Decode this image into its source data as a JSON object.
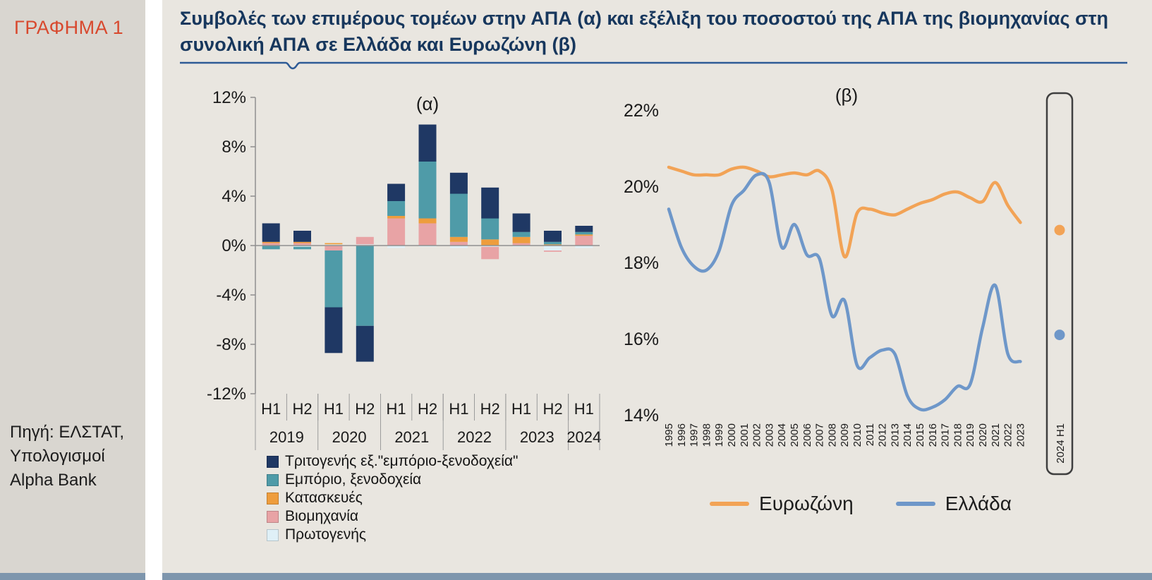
{
  "sidebar": {
    "label": "ΓΡΑΦΗΜΑ 1",
    "source": "Πηγή: ΕΛΣΤΑΤ,\nΥπολογισμοί\nAlpha Bank"
  },
  "header": {
    "title": "Συμβολές των επιμέρους τομέων στην ΑΠΑ (α) και εξέλιξη του ποσοστού της ΑΠΑ της βιομηχανίας στη συνολική ΑΠΑ σε Ελλάδα και Ευρωζώνη  (β)"
  },
  "colors": {
    "accent_red": "#d8492e",
    "title_blue": "#17375d",
    "rule_blue": "#2e5b96",
    "panel_bg": "#e9e6e0",
    "sidebar_bg": "#d9d6d0",
    "bottom_strip": "#7e96ad"
  },
  "chart_data": [
    {
      "type": "bar",
      "stacked": true,
      "title": "(α)",
      "ylim": [
        -12,
        12
      ],
      "yticks": [
        12,
        8,
        4,
        0,
        -4,
        -8,
        -12
      ],
      "ytick_suffix": "%",
      "categories": [
        "H1",
        "H2",
        "H1",
        "H2",
        "H1",
        "H2",
        "H1",
        "H2",
        "H1",
        "H2",
        "H1"
      ],
      "year_groups": [
        {
          "label": "2019",
          "span": 2
        },
        {
          "label": "2020",
          "span": 2
        },
        {
          "label": "2021",
          "span": 2
        },
        {
          "label": "2022",
          "span": 2
        },
        {
          "label": "2023",
          "span": 2
        },
        {
          "label": "2024",
          "span": 1
        }
      ],
      "series": [
        {
          "name": "Πρωτογενής",
          "color": "#dff0f7",
          "values": [
            0.0,
            -0.1,
            0.1,
            0.1,
            -0.2,
            -0.1,
            -0.2,
            -0.1,
            -0.1,
            -0.4,
            -0.2
          ]
        },
        {
          "name": "Βιομηχανία",
          "color": "#e8a3a5",
          "values": [
            0.2,
            0.2,
            -0.4,
            0.6,
            2.2,
            1.8,
            0.3,
            -1.0,
            0.2,
            -0.1,
            0.8
          ]
        },
        {
          "name": "Κατασκευές",
          "color": "#ee9d3d",
          "values": [
            0.1,
            0.1,
            0.1,
            0.0,
            0.2,
            0.4,
            0.4,
            0.5,
            0.5,
            0.1,
            0.1
          ]
        },
        {
          "name": "Εμπόριο, ξενοδοχεία",
          "color": "#4f9ba8",
          "values": [
            -0.3,
            -0.2,
            -4.6,
            -6.5,
            1.2,
            4.6,
            3.5,
            1.7,
            0.4,
            0.2,
            0.2
          ]
        },
        {
          "name": "Τριτογενής εξ.\"εμπόριο-ξενοδοχεία\"",
          "color": "#1f3864",
          "values": [
            1.5,
            0.9,
            -3.7,
            -2.9,
            1.4,
            3.0,
            1.7,
            2.5,
            1.5,
            0.9,
            0.5
          ]
        }
      ]
    },
    {
      "type": "line",
      "title": "(β)",
      "ylim": [
        14,
        22
      ],
      "yticks": [
        22,
        20,
        18,
        16,
        14
      ],
      "ytick_suffix": "%",
      "x": [
        "1995",
        "1996",
        "1997",
        "1998",
        "1999",
        "2000",
        "2001",
        "2002",
        "2003",
        "2004",
        "2005",
        "2006",
        "2007",
        "2008",
        "2009",
        "2010",
        "2011",
        "2012",
        "2013",
        "2014",
        "2015",
        "2016",
        "2017",
        "2018",
        "2019",
        "2020",
        "2021",
        "2022",
        "2023"
      ],
      "highlight_label": "2024 H1",
      "series": [
        {
          "name": "Ευρωζώνη",
          "color": "#f2a356",
          "values": [
            20.5,
            20.4,
            20.3,
            20.3,
            20.3,
            20.45,
            20.5,
            20.4,
            20.25,
            20.3,
            20.35,
            20.3,
            20.4,
            19.9,
            18.15,
            19.3,
            19.4,
            19.3,
            19.25,
            19.4,
            19.55,
            19.65,
            19.8,
            19.85,
            19.7,
            19.6,
            20.1,
            19.5,
            19.05
          ],
          "end_point": 18.85
        },
        {
          "name": "Ελλάδα",
          "color": "#6e97c9",
          "values": [
            19.4,
            18.4,
            17.9,
            17.8,
            18.3,
            19.5,
            19.9,
            20.3,
            20.1,
            18.4,
            19.0,
            18.2,
            18.1,
            16.6,
            17.0,
            15.3,
            15.5,
            15.7,
            15.6,
            14.5,
            14.15,
            14.2,
            14.4,
            14.75,
            14.8,
            16.3,
            17.4,
            15.6,
            15.4
          ],
          "end_point": 16.1
        }
      ]
    }
  ]
}
